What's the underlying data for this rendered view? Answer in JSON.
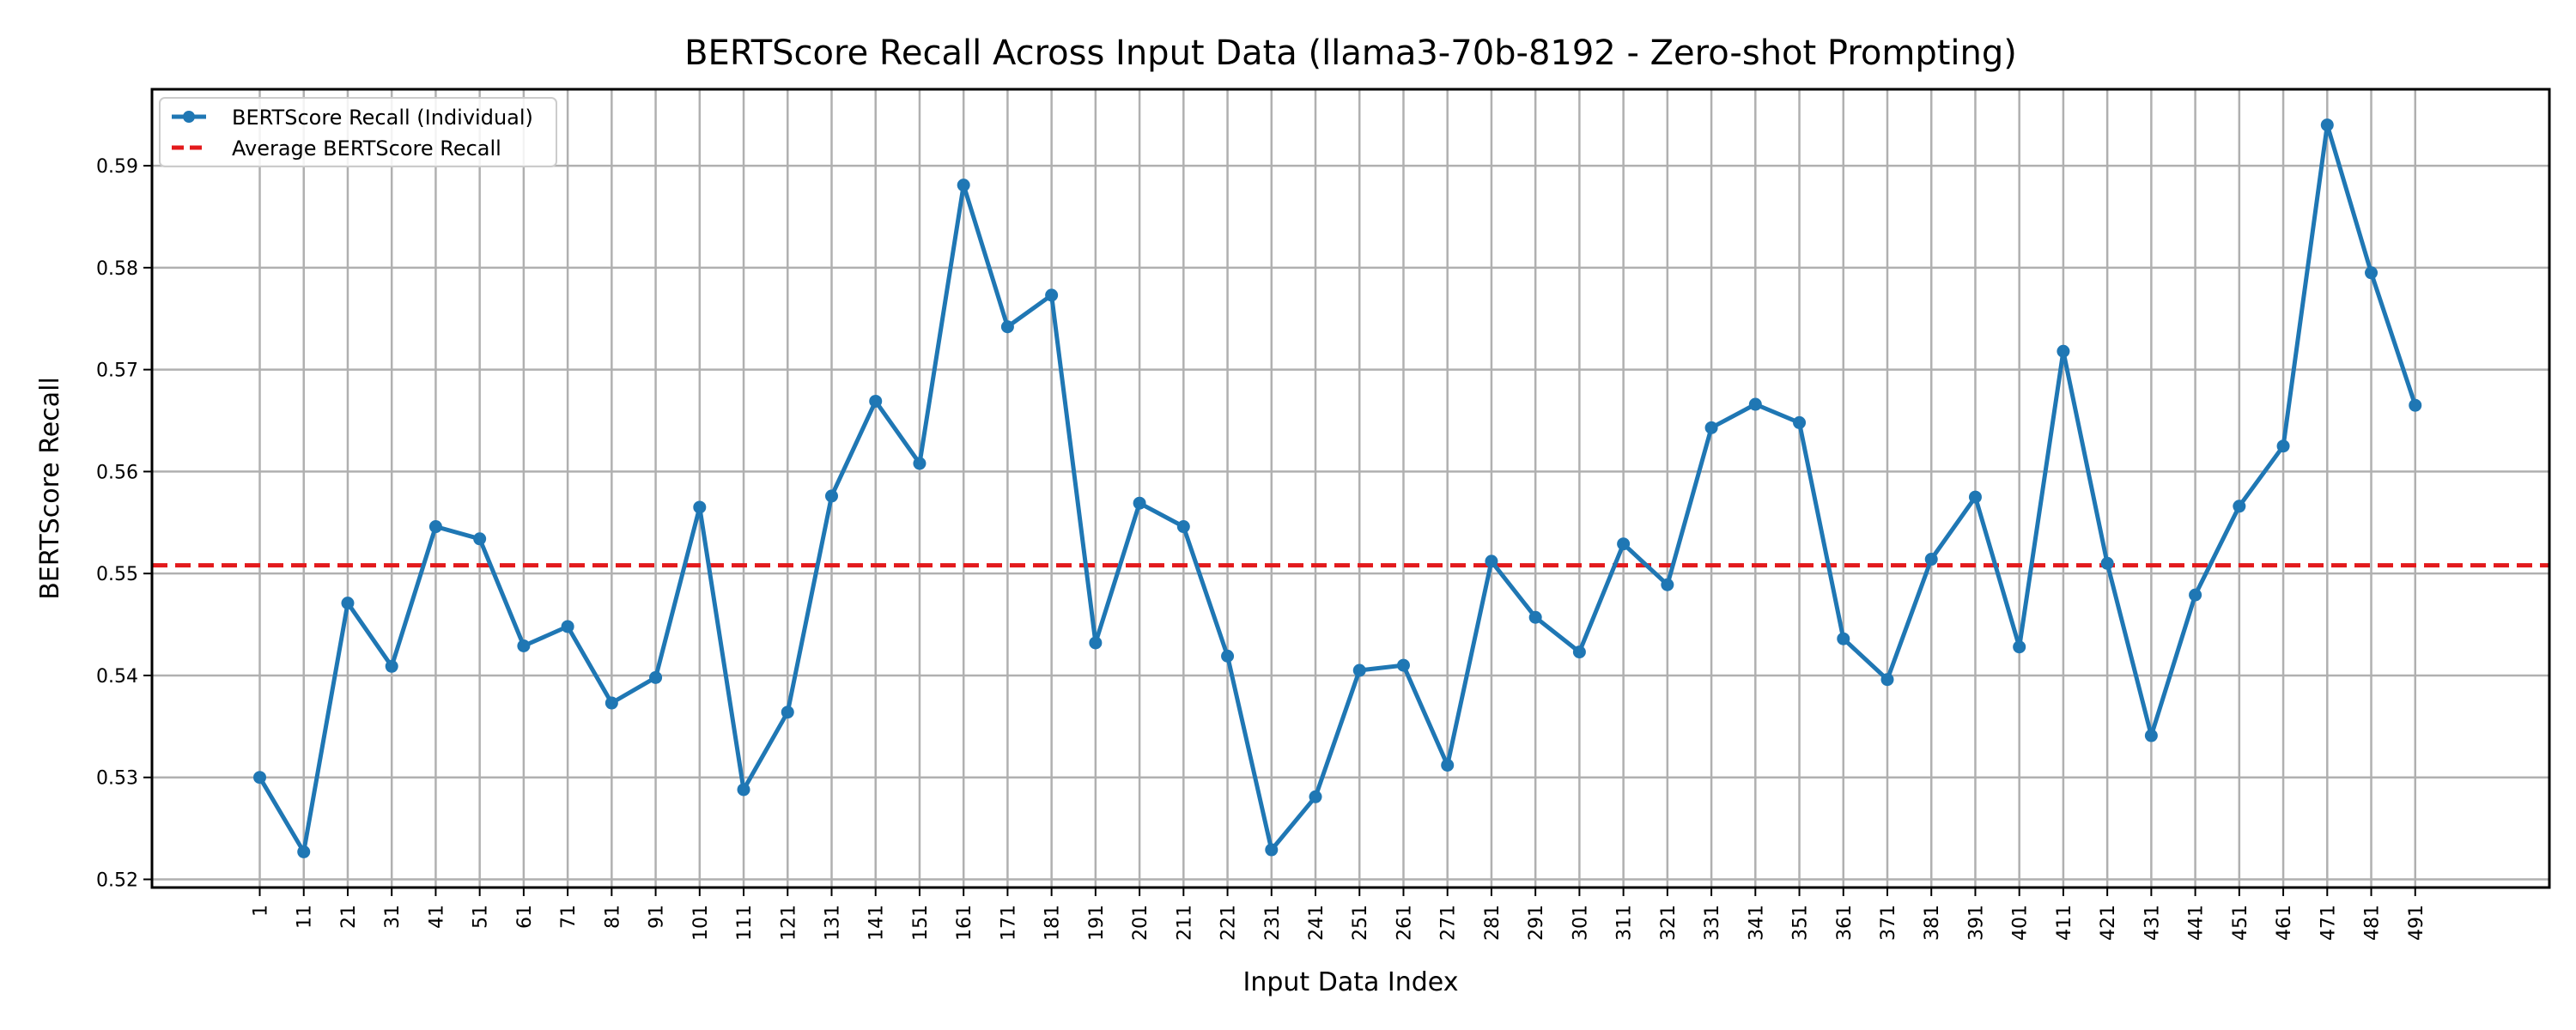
{
  "chart_data": {
    "type": "line",
    "title": "BERTScore Recall Across Input Data (llama3-70b-8192 - Zero-shot Prompting)",
    "xlabel": "Input Data Index",
    "ylabel": "BERTScore Recall",
    "x": [
      1,
      11,
      21,
      31,
      41,
      51,
      61,
      71,
      81,
      91,
      101,
      111,
      121,
      131,
      141,
      151,
      161,
      171,
      181,
      191,
      201,
      211,
      221,
      231,
      241,
      251,
      261,
      271,
      281,
      291,
      301,
      311,
      321,
      331,
      341,
      351,
      361,
      371,
      381,
      391,
      401,
      411,
      421,
      431,
      441,
      451,
      461,
      471,
      481,
      491
    ],
    "xticks": [
      "1",
      "11",
      "21",
      "31",
      "41",
      "51",
      "61",
      "71",
      "81",
      "91",
      "101",
      "111",
      "121",
      "131",
      "141",
      "151",
      "161",
      "171",
      "181",
      "191",
      "201",
      "211",
      "221",
      "231",
      "241",
      "251",
      "261",
      "271",
      "281",
      "291",
      "301",
      "311",
      "321",
      "331",
      "341",
      "351",
      "361",
      "371",
      "381",
      "391",
      "401",
      "411",
      "421",
      "431",
      "441",
      "451",
      "461",
      "471",
      "481",
      "491"
    ],
    "yticks": [
      "0.52",
      "0.53",
      "0.54",
      "0.55",
      "0.56",
      "0.57",
      "0.58",
      "0.59"
    ],
    "ytick_values": [
      0.52,
      0.53,
      0.54,
      0.55,
      0.56,
      0.57,
      0.58,
      0.59
    ],
    "ylim": [
      0.5192,
      0.5975
    ],
    "xlim": [
      -23.5,
      521.5
    ],
    "grid": true,
    "legend_placement": "upper-left",
    "series": [
      {
        "name": "BERTScore Recall (Individual)",
        "color": "#1f77b4",
        "style": "solid-with-markers",
        "values": [
          0.53,
          0.5227,
          0.5471,
          0.5409,
          0.5546,
          0.5534,
          0.5429,
          0.5448,
          0.5373,
          0.5398,
          0.5565,
          0.5288,
          0.5364,
          0.5576,
          0.5669,
          0.5608,
          0.5881,
          0.5742,
          0.5773,
          0.5432,
          0.5569,
          0.5546,
          0.5419,
          0.5229,
          0.5281,
          0.5405,
          0.541,
          0.5312,
          0.5512,
          0.5457,
          0.5423,
          0.5529,
          0.5489,
          0.5643,
          0.5666,
          0.5648,
          0.5436,
          0.5396,
          0.5514,
          0.5575,
          0.5428,
          0.5718,
          0.551,
          0.5341,
          0.5479,
          0.5566,
          0.5625,
          0.594,
          0.5795,
          0.5665
        ]
      },
      {
        "name": "Average BERTScore Recall",
        "color": "#e31a1c",
        "style": "dashed",
        "value": 0.5508
      }
    ]
  }
}
